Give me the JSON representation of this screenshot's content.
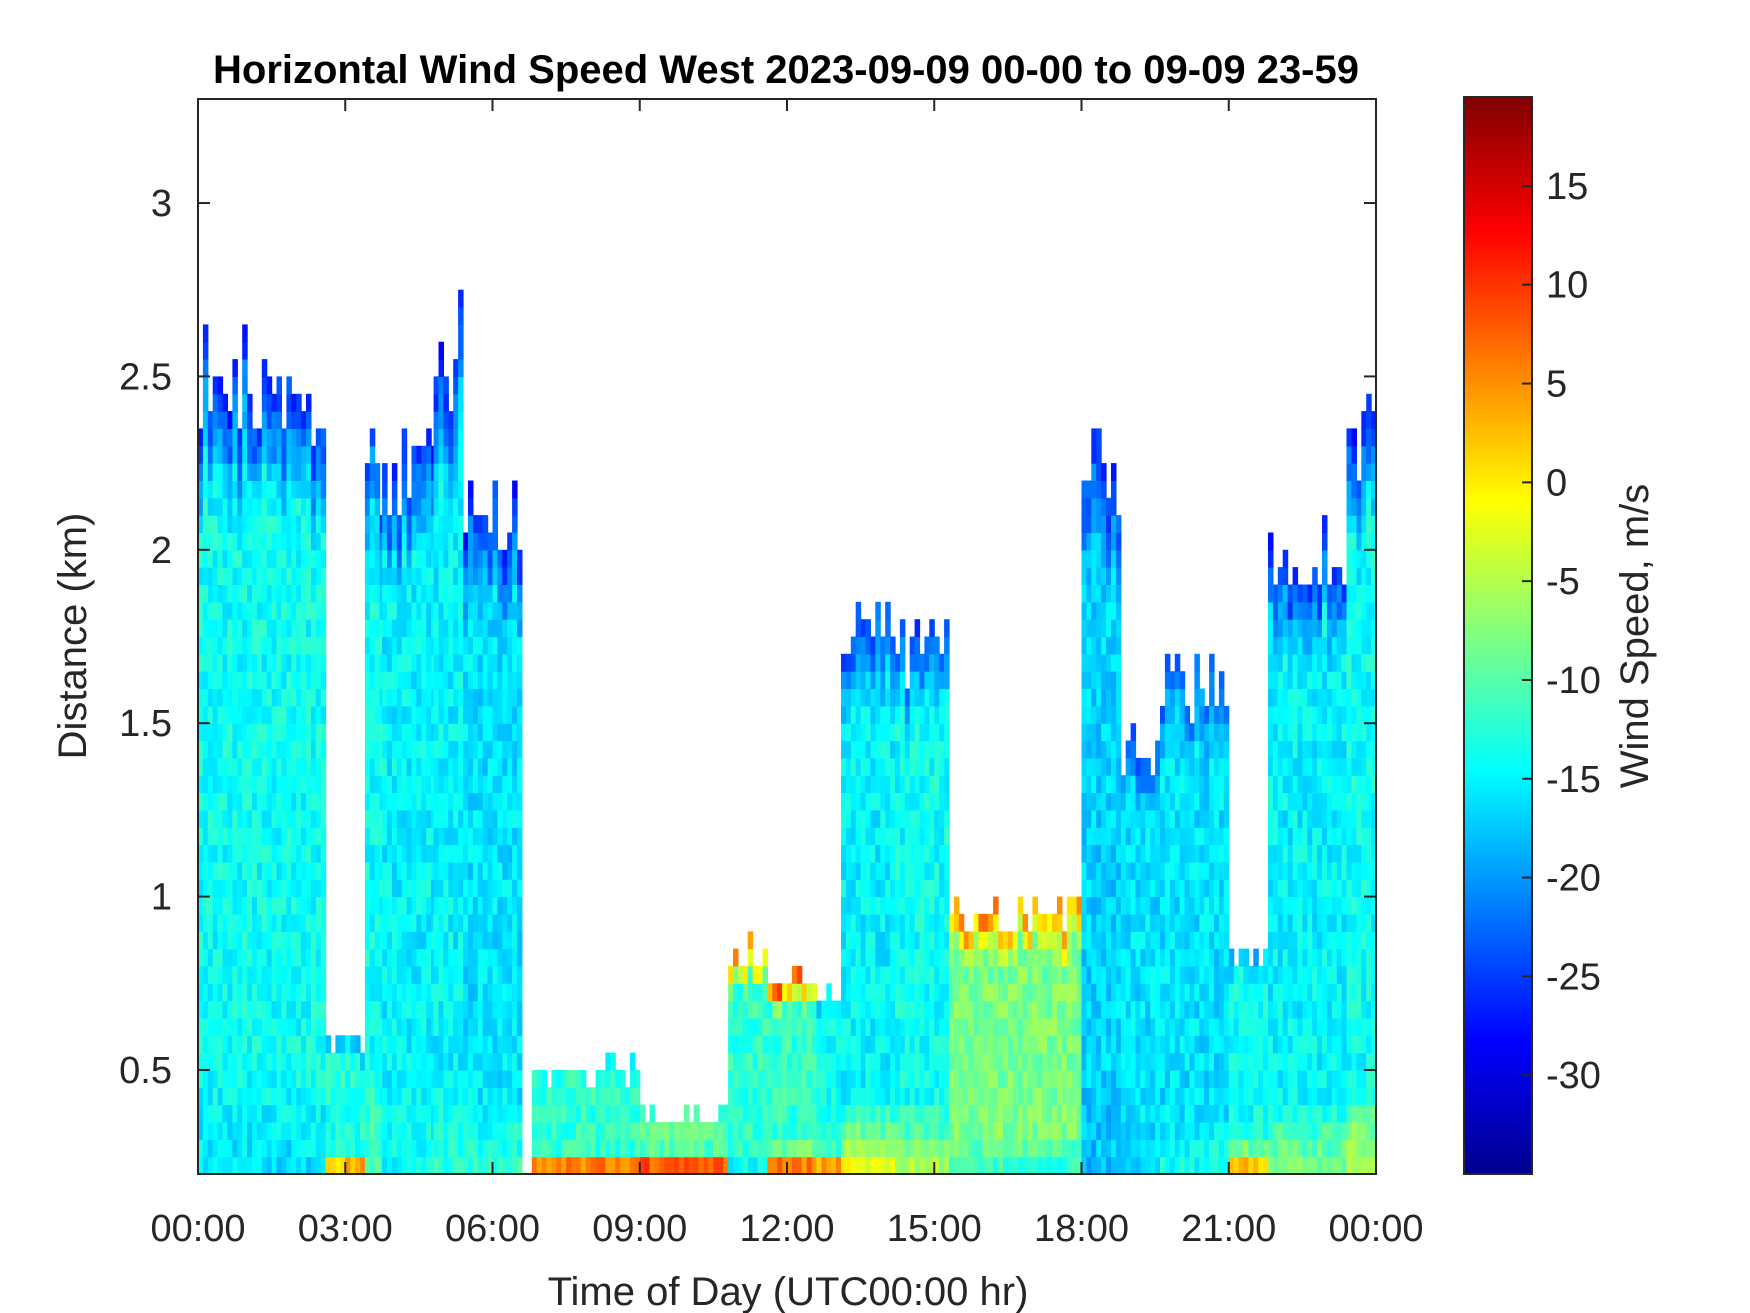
{
  "chart_data": {
    "type": "heatmap",
    "title": "Horizontal Wind Speed West 2023-09-09 00-00 to 09-09 23-59",
    "xlabel": "Time of Day (UTC00:00 hr)",
    "ylabel": "Distance (km)",
    "colorbar_label": "Wind Speed, m/s",
    "x_unit": "hours",
    "xlim": [
      0,
      24
    ],
    "ylim": [
      0.2,
      3.3
    ],
    "clim": [
      -35,
      19.5
    ],
    "colormap": "jet",
    "grid": false,
    "x_ticks": [
      {
        "value": 0,
        "label": "00:00"
      },
      {
        "value": 3,
        "label": "03:00"
      },
      {
        "value": 6,
        "label": "06:00"
      },
      {
        "value": 9,
        "label": "09:00"
      },
      {
        "value": 12,
        "label": "12:00"
      },
      {
        "value": 15,
        "label": "15:00"
      },
      {
        "value": 18,
        "label": "18:00"
      },
      {
        "value": 21,
        "label": "21:00"
      },
      {
        "value": 24,
        "label": "00:00"
      }
    ],
    "y_ticks": [
      {
        "value": 0.5,
        "label": "0.5"
      },
      {
        "value": 1,
        "label": "1"
      },
      {
        "value": 1.5,
        "label": "1.5"
      },
      {
        "value": 2,
        "label": "2"
      },
      {
        "value": 2.5,
        "label": "2.5"
      },
      {
        "value": 3,
        "label": "3"
      }
    ],
    "colorbar_ticks": [
      {
        "value": 15,
        "label": "15"
      },
      {
        "value": 10,
        "label": "10"
      },
      {
        "value": 5,
        "label": "5"
      },
      {
        "value": 0,
        "label": "0"
      },
      {
        "value": -5,
        "label": "-5"
      },
      {
        "value": -10,
        "label": "-10"
      },
      {
        "value": -15,
        "label": "-15"
      },
      {
        "value": -20,
        "label": "-20"
      },
      {
        "value": -25,
        "label": "-25"
      },
      {
        "value": -30,
        "label": "-30"
      }
    ],
    "profiles": [
      {
        "t": [
          0.0,
          2.6
        ],
        "top": 2.45,
        "base": -14,
        "top_value": -26,
        "surface_value": -16
      },
      {
        "t": [
          2.6,
          3.0
        ],
        "top": 0.55,
        "base": -13,
        "top_value": -20,
        "surface_value": 2
      },
      {
        "t": [
          3.0,
          3.4
        ],
        "top": 0.55,
        "base": -13,
        "top_value": -20,
        "surface_value": 4
      },
      {
        "t": [
          3.4,
          3.75
        ],
        "top": 2.2,
        "base": -14,
        "top_value": -24,
        "surface_value": -10
      },
      {
        "t": [
          3.75,
          4.8
        ],
        "top": 2.2,
        "base": -15,
        "top_value": -26,
        "surface_value": -14
      },
      {
        "t": [
          4.8,
          5.4
        ],
        "top": 2.55,
        "base": -15,
        "top_value": -27,
        "surface_value": -12
      },
      {
        "t": [
          5.4,
          6.6
        ],
        "top": 2.05,
        "base": -16,
        "top_value": -26,
        "surface_value": -12
      },
      {
        "t": [
          6.8,
          9.0
        ],
        "top": 0.47,
        "base": -12,
        "top_value": -14,
        "surface_value": 6
      },
      {
        "t": [
          9.0,
          10.8
        ],
        "top": 0.34,
        "base": -10,
        "top_value": -12,
        "surface_value": 8
      },
      {
        "t": [
          10.8,
          11.6
        ],
        "top": 0.82,
        "base": -12,
        "top_value": 6,
        "surface_value": -14
      },
      {
        "t": [
          11.6,
          12.6
        ],
        "top": 0.75,
        "base": -12,
        "top_value": 8,
        "surface_value": 6
      },
      {
        "t": [
          12.6,
          13.1
        ],
        "top": 0.7,
        "base": -14,
        "top_value": -18,
        "surface_value": 4
      },
      {
        "t": [
          13.1,
          14.2
        ],
        "top": 1.75,
        "base": -15,
        "top_value": -24,
        "surface_value": -2
      },
      {
        "t": [
          14.2,
          15.3
        ],
        "top": 1.7,
        "base": -14,
        "top_value": -24,
        "surface_value": -6
      },
      {
        "t": [
          15.3,
          18.0
        ],
        "top": 0.92,
        "base": -8,
        "top_value": 6,
        "surface_value": -12
      },
      {
        "t": [
          18.0,
          18.8
        ],
        "top": 2.2,
        "base": -17,
        "top_value": -25,
        "surface_value": -18
      },
      {
        "t": [
          18.8,
          19.6
        ],
        "top": 1.4,
        "base": -16,
        "top_value": -24,
        "surface_value": -16
      },
      {
        "t": [
          19.6,
          21.0
        ],
        "top": 1.6,
        "base": -16,
        "top_value": -22,
        "surface_value": -14
      },
      {
        "t": [
          21.0,
          21.8
        ],
        "top": 0.8,
        "base": -14,
        "top_value": -18,
        "surface_value": 2
      },
      {
        "t": [
          21.8,
          23.4
        ],
        "top": 1.95,
        "base": -15,
        "top_value": -26,
        "surface_value": -8
      },
      {
        "t": [
          23.4,
          24.0
        ],
        "top": 2.3,
        "base": -14,
        "top_value": -27,
        "surface_value": -4
      }
    ]
  }
}
